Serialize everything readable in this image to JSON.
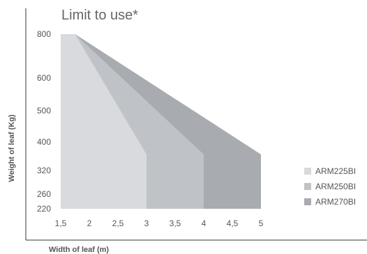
{
  "chart_data": {
    "type": "area",
    "title": "Limit to use*",
    "xlabel": "Width of leaf (m)",
    "ylabel": "Weight of leaf (Kg)",
    "x_ticks": [
      "1,5",
      "2",
      "2,5",
      "3",
      "3,5",
      "4",
      "4,5",
      "5"
    ],
    "x_tick_values": [
      1.5,
      2,
      2.5,
      3,
      3.5,
      4,
      4.5,
      5
    ],
    "y_ticks": [
      "800",
      "600",
      "500",
      "400",
      "320",
      "260",
      "220"
    ],
    "y_tick_values": [
      800,
      600,
      500,
      400,
      320,
      260,
      220
    ],
    "xlim": [
      1.3,
      5.1
    ],
    "ylim": [
      220,
      800
    ],
    "grid": false,
    "legend_position": "right",
    "series": [
      {
        "name": "ARM270BI",
        "color": "#a8abaf",
        "points": [
          [
            1.5,
            800
          ],
          [
            1.75,
            800
          ],
          [
            5.0,
            365
          ],
          [
            5.0,
            220
          ],
          [
            1.5,
            220
          ]
        ]
      },
      {
        "name": "ARM250BI",
        "color": "#bfc2c6",
        "points": [
          [
            1.5,
            800
          ],
          [
            1.75,
            800
          ],
          [
            4.0,
            365
          ],
          [
            4.0,
            220
          ],
          [
            1.5,
            220
          ]
        ]
      },
      {
        "name": "ARM225BI",
        "color": "#d8dadd",
        "points": [
          [
            1.5,
            800
          ],
          [
            1.75,
            800
          ],
          [
            3.0,
            365
          ],
          [
            3.0,
            220
          ],
          [
            1.5,
            220
          ]
        ]
      }
    ],
    "legend": [
      {
        "name": "ARM225BI",
        "color": "#d8dadd"
      },
      {
        "name": "ARM250BI",
        "color": "#bfc2c6"
      },
      {
        "name": "ARM270BI",
        "color": "#a8abaf"
      }
    ]
  }
}
